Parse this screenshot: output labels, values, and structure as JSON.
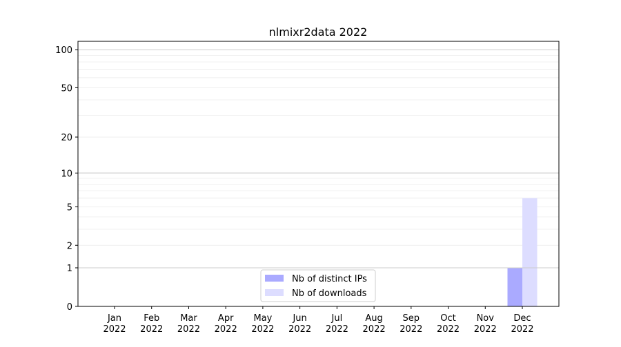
{
  "chart_data": {
    "type": "bar",
    "title": "nlmixr2data 2022",
    "xlabel": "",
    "ylabel": "",
    "yscale": "log(1+y)",
    "ylim": [
      0,
      116
    ],
    "grid": true,
    "legend_position": "bottom-center",
    "categories": [
      "Jan\n2022",
      "Feb\n2022",
      "Mar\n2022",
      "Apr\n2022",
      "May\n2022",
      "Jun\n2022",
      "Jul\n2022",
      "Aug\n2022",
      "Sep\n2022",
      "Oct\n2022",
      "Nov\n2022",
      "Dec\n2022"
    ],
    "yticks": [
      0,
      1,
      2,
      5,
      10,
      20,
      50,
      100
    ],
    "series": [
      {
        "name": "Nb of distinct IPs",
        "color": "#aaaaff",
        "values": [
          0,
          0,
          0,
          0,
          0,
          0,
          0,
          0,
          0,
          0,
          0,
          1
        ]
      },
      {
        "name": "Nb of downloads",
        "color": "#ddddff",
        "values": [
          0,
          0,
          0,
          0,
          0,
          0,
          0,
          0,
          0,
          0,
          0,
          6
        ]
      }
    ]
  }
}
